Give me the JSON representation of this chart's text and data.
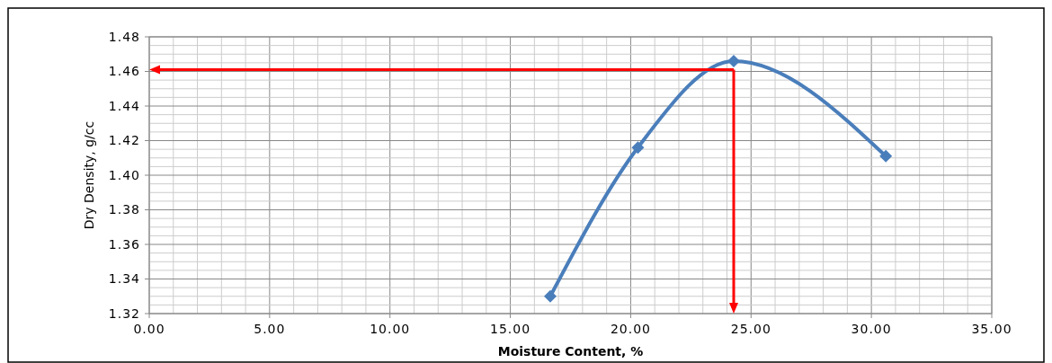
{
  "chart_data": {
    "type": "line",
    "xlabel": "Moisture Content, %",
    "ylabel": "Dry Density, g/cc",
    "x": [
      16.66,
      20.3,
      24.28,
      30.6
    ],
    "series": [
      {
        "color": "#4a7ebb",
        "values": [
          1.33,
          1.416,
          1.466,
          1.411
        ]
      }
    ],
    "xlim": [
      0,
      35
    ],
    "xticks": [
      {
        "value": 0,
        "label": "0.00"
      },
      {
        "value": 5,
        "label": "5.00"
      },
      {
        "value": 10,
        "label": "10.00"
      },
      {
        "value": 15,
        "label": "15.00"
      },
      {
        "value": 20,
        "label": "20.00"
      },
      {
        "value": 25,
        "label": "25.00"
      },
      {
        "value": 30,
        "label": "30.00"
      },
      {
        "value": 35,
        "label": "35.00"
      }
    ],
    "ylim": [
      1.32,
      1.48
    ],
    "yticks": [
      {
        "value": 1.32,
        "label": "1.32"
      },
      {
        "value": 1.34,
        "label": "1.34"
      },
      {
        "value": 1.36,
        "label": "1.36"
      },
      {
        "value": 1.38,
        "label": "1.38"
      },
      {
        "value": 1.4,
        "label": "1.40"
      },
      {
        "value": 1.42,
        "label": "1.42"
      },
      {
        "value": 1.44,
        "label": "1.44"
      },
      {
        "value": 1.46,
        "label": "1.46"
      },
      {
        "value": 1.48,
        "label": "1.48"
      }
    ],
    "grid": true,
    "marker": "diamond",
    "line_style": "solid",
    "ref_lines": [
      {
        "axis": "x",
        "value": 24.28,
        "color": "#ff0000"
      },
      {
        "axis": "y",
        "value": 1.461,
        "color": "#ff0000"
      }
    ]
  }
}
